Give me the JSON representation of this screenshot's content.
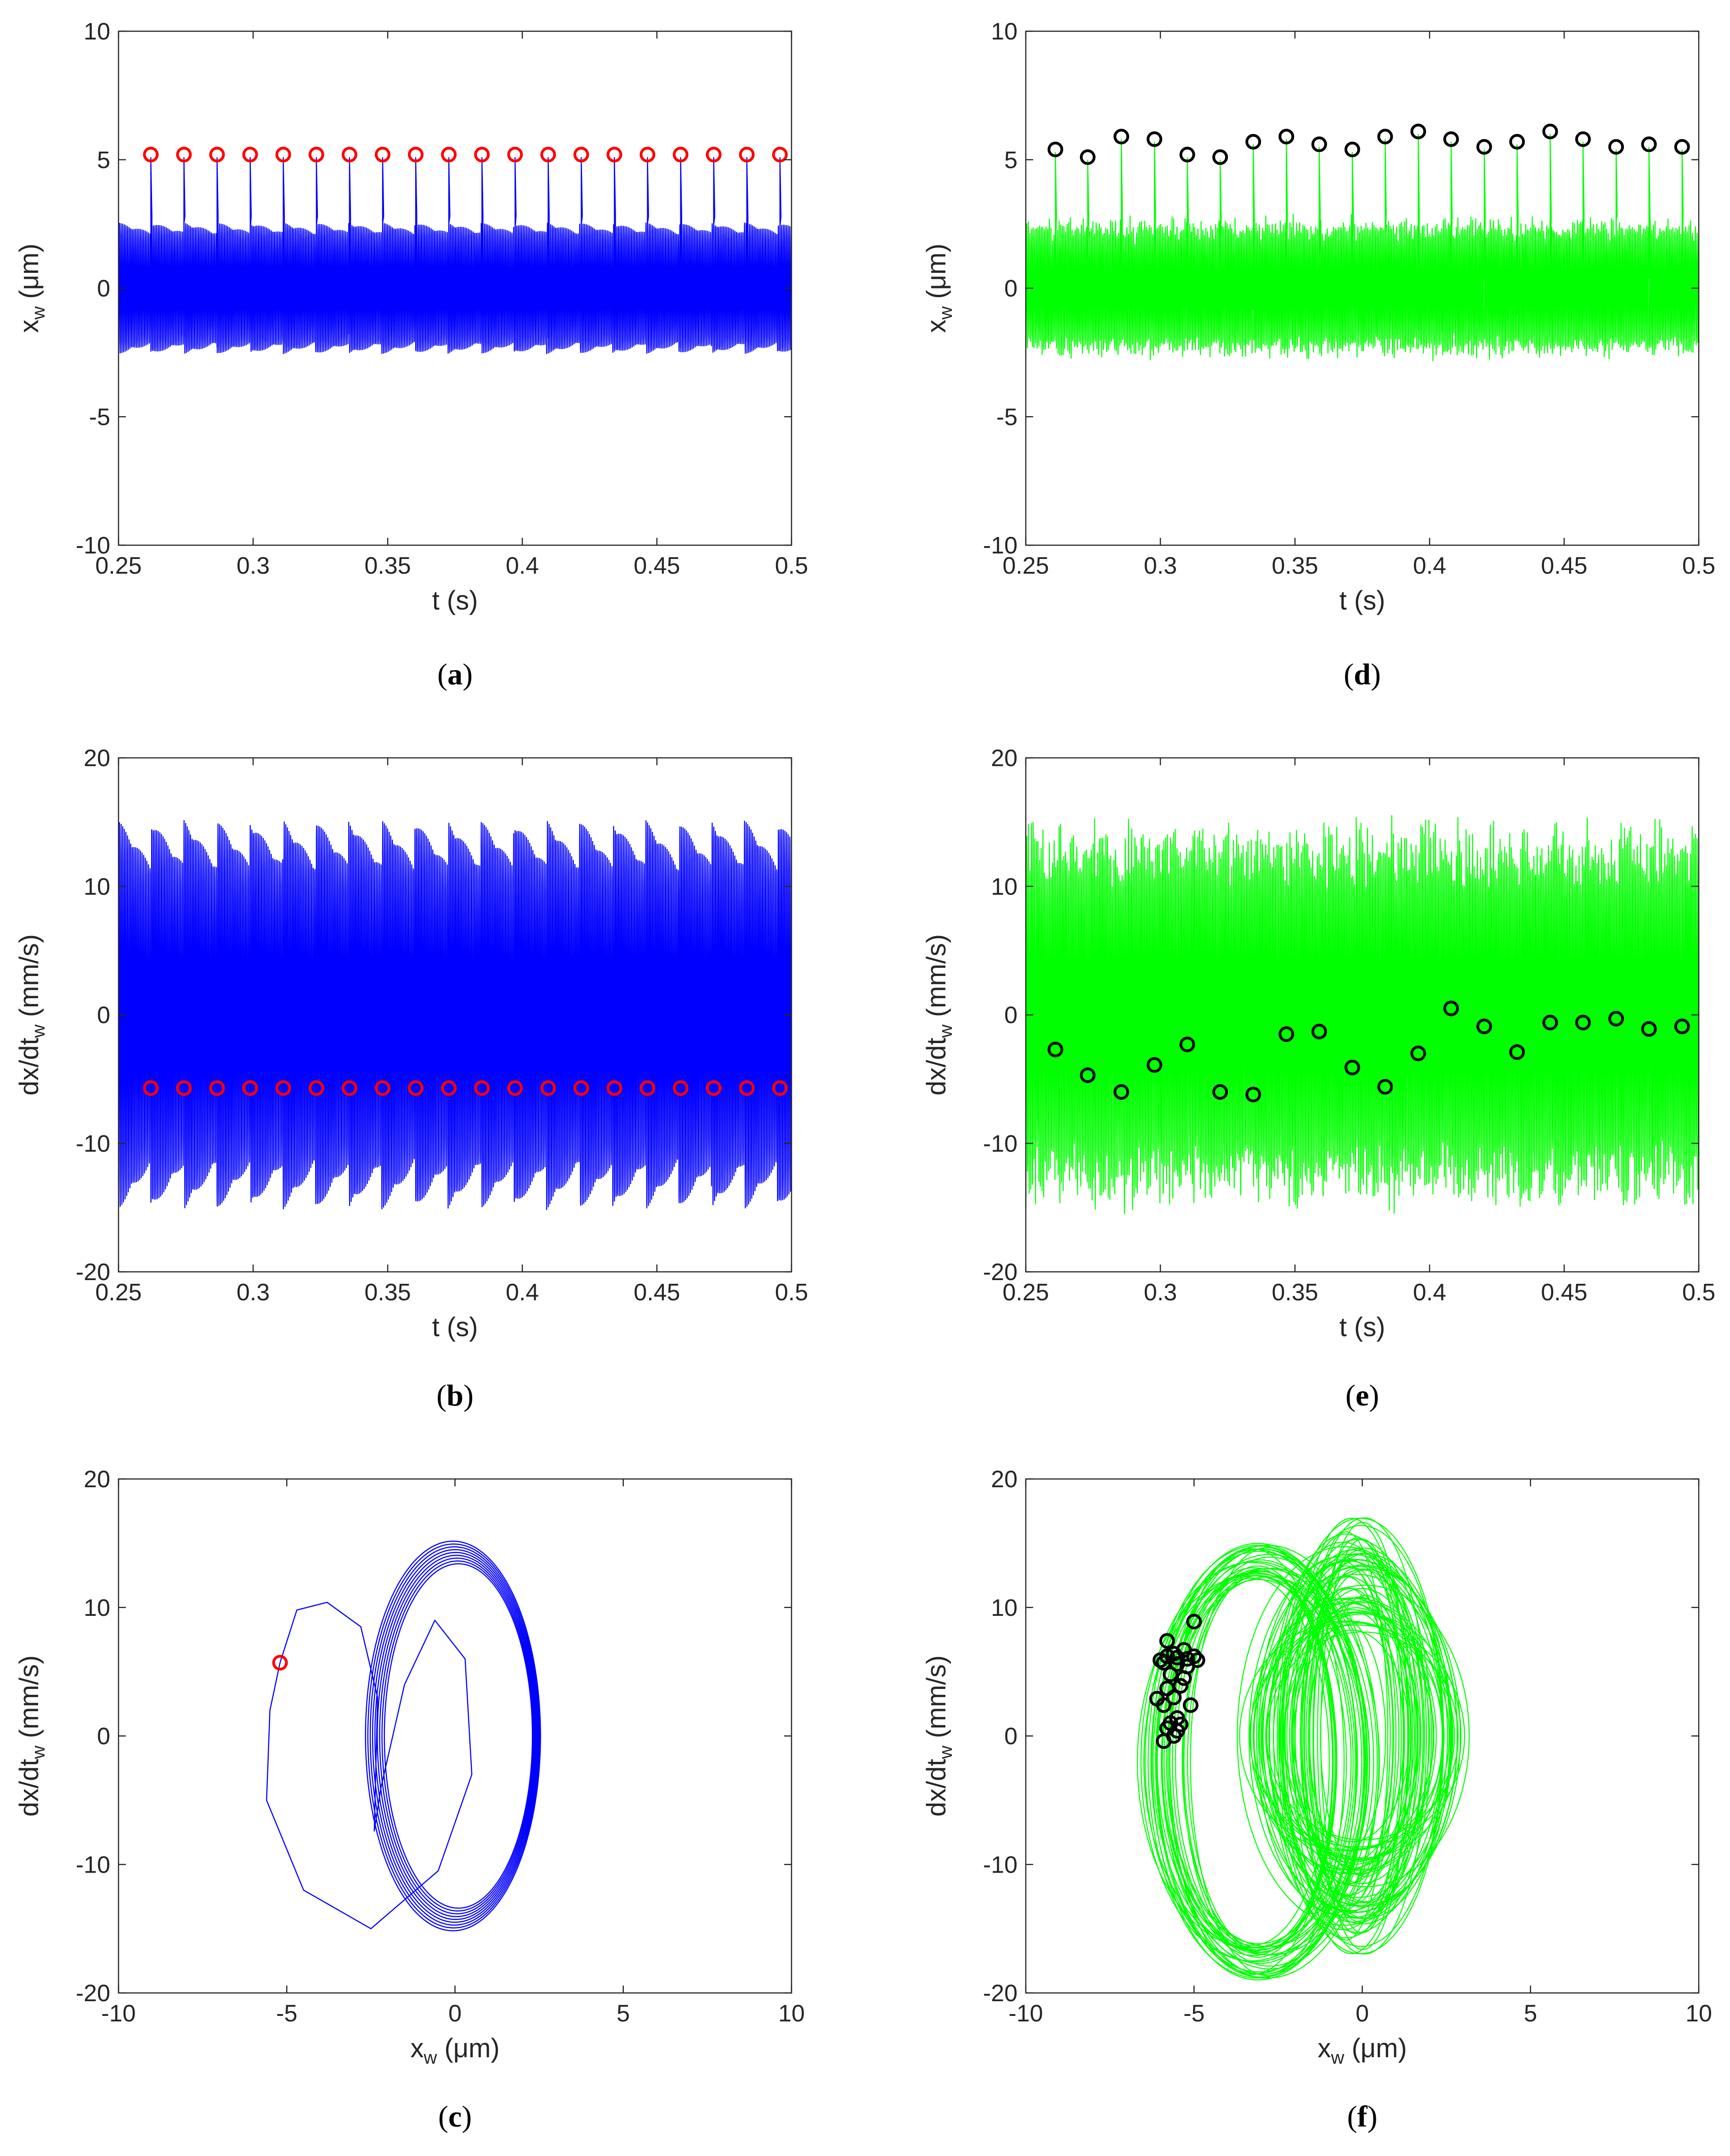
{
  "chart_data": [
    {
      "id": "a",
      "caption": "(a)",
      "caption_letter": "a",
      "type": "line",
      "signal": "spike_periodic",
      "line_color": "#0000ff",
      "marker_color": "#ff0000",
      "xlabel": "t (s)",
      "ylabel": "x_w (μm)",
      "xlim": [
        0.25,
        0.5
      ],
      "ylim": [
        -10,
        10
      ],
      "xticks": [
        0.25,
        0.3,
        0.35,
        0.4,
        0.45,
        0.5
      ],
      "yticks": [
        -10,
        -5,
        0,
        5,
        10
      ],
      "xtick_labels": [
        "0.25",
        "0.3",
        "0.35",
        "0.4",
        "0.45",
        "0.5"
      ],
      "ytick_labels": [
        "-10",
        "-5",
        "0",
        "5",
        "10"
      ],
      "markers_x": [
        0.262,
        0.2743,
        0.2866,
        0.2989,
        0.3112,
        0.3235,
        0.3358,
        0.3481,
        0.3604,
        0.3727,
        0.385,
        0.3973,
        0.4096,
        0.4219,
        0.4342,
        0.4465,
        0.4588,
        0.4711,
        0.4834,
        0.4957
      ],
      "markers_y": [
        5.2,
        5.2,
        5.2,
        5.2,
        5.2,
        5.2,
        5.2,
        5.2,
        5.2,
        5.2,
        5.2,
        5.2,
        5.2,
        5.2,
        5.2,
        5.2,
        5.2,
        5.2,
        5.2,
        5.2
      ],
      "signal_range": [
        -2.8,
        2.7
      ]
    },
    {
      "id": "b",
      "caption": "(b)",
      "caption_letter": "b",
      "type": "line",
      "signal": "dense_periodic",
      "line_color": "#0000ff",
      "marker_color": "#ff0000",
      "xlabel": "t (s)",
      "ylabel": "dx/dt_w (mm/s)",
      "xlim": [
        0.25,
        0.5
      ],
      "ylim": [
        -20,
        20
      ],
      "xticks": [
        0.25,
        0.3,
        0.35,
        0.4,
        0.45,
        0.5
      ],
      "yticks": [
        -20,
        -10,
        0,
        10,
        20
      ],
      "xtick_labels": [
        "0.25",
        "0.3",
        "0.35",
        "0.4",
        "0.45",
        "0.5"
      ],
      "ytick_labels": [
        "-20",
        "-10",
        "0",
        "10",
        "20"
      ],
      "markers_x": [
        0.262,
        0.2743,
        0.2866,
        0.2989,
        0.3112,
        0.3235,
        0.3358,
        0.3481,
        0.3604,
        0.3727,
        0.385,
        0.3973,
        0.4096,
        0.4219,
        0.4342,
        0.4465,
        0.4588,
        0.4711,
        0.4834,
        0.4957
      ],
      "markers_y": [
        -5.7,
        -5.7,
        -5.7,
        -5.7,
        -5.7,
        -5.7,
        -5.7,
        -5.7,
        -5.7,
        -5.7,
        -5.7,
        -5.7,
        -5.7,
        -5.7,
        -5.7,
        -5.7,
        -5.7,
        -5.7,
        -5.7,
        -5.7
      ],
      "signal_range": [
        -15.2,
        15.2
      ]
    },
    {
      "id": "c",
      "caption": "(c)",
      "caption_letter": "c",
      "type": "line",
      "signal": "phase_periodic",
      "line_color": "#0000ff",
      "marker_color": "#ff0000",
      "xlabel": "x_w (μm)",
      "ylabel": "dx/dt_w (mm/s)",
      "xlim": [
        -10,
        10
      ],
      "ylim": [
        -20,
        20
      ],
      "xticks": [
        -10,
        -5,
        0,
        5,
        10
      ],
      "yticks": [
        -20,
        -10,
        0,
        10,
        20
      ],
      "xtick_labels": [
        "-10",
        "-5",
        "0",
        "5",
        "10"
      ],
      "ytick_labels": [
        "-20",
        "-10",
        "0",
        "10",
        "20"
      ],
      "markers_x": [
        -5.2
      ],
      "markers_y": [
        5.7
      ]
    },
    {
      "id": "d",
      "caption": "(d)",
      "caption_letter": "d",
      "type": "line",
      "signal": "spike_chaotic",
      "line_color": "#00ff00",
      "marker_color": "#000000",
      "xlabel": "t (s)",
      "ylabel": "x_w (μm)",
      "xlim": [
        0.25,
        0.5
      ],
      "ylim": [
        -10,
        10
      ],
      "xticks": [
        0.25,
        0.3,
        0.35,
        0.4,
        0.45,
        0.5
      ],
      "yticks": [
        -10,
        -5,
        0,
        5,
        10
      ],
      "xtick_labels": [
        "0.25",
        "0.3",
        "0.35",
        "0.4",
        "0.45",
        "0.5"
      ],
      "ytick_labels": [
        "-10",
        "-5",
        "0",
        "5",
        "10"
      ],
      "markers_x": [
        0.261,
        0.273,
        0.2855,
        0.2978,
        0.31,
        0.3222,
        0.3345,
        0.3468,
        0.359,
        0.3713,
        0.3835,
        0.3958,
        0.408,
        0.4203,
        0.4325,
        0.4448,
        0.457,
        0.4693,
        0.4815,
        0.4938
      ],
      "markers_y": [
        5.4,
        5.1,
        5.9,
        5.8,
        5.2,
        5.1,
        5.7,
        5.9,
        5.6,
        5.4,
        5.9,
        6.1,
        5.8,
        5.5,
        5.7,
        6.1,
        5.8,
        5.5,
        5.6,
        5.5
      ],
      "signal_range": [
        -2.9,
        2.4
      ]
    },
    {
      "id": "e",
      "caption": "(e)",
      "caption_letter": "e",
      "type": "line",
      "signal": "dense_chaotic",
      "line_color": "#00ff00",
      "marker_color": "#000000",
      "xlabel": "t (s)",
      "ylabel": "dx/dt_w (mm/s)",
      "xlim": [
        0.25,
        0.5
      ],
      "ylim": [
        -20,
        20
      ],
      "xticks": [
        0.25,
        0.3,
        0.35,
        0.4,
        0.45,
        0.5
      ],
      "yticks": [
        -20,
        -10,
        0,
        10,
        20
      ],
      "xtick_labels": [
        "0.25",
        "0.3",
        "0.35",
        "0.4",
        "0.45",
        "0.5"
      ],
      "ytick_labels": [
        "-20",
        "-10",
        "0",
        "10",
        "20"
      ],
      "markers_x": [
        0.261,
        0.273,
        0.2855,
        0.2978,
        0.31,
        0.3222,
        0.3345,
        0.3468,
        0.359,
        0.3713,
        0.3835,
        0.3958,
        0.408,
        0.4203,
        0.4325,
        0.4448,
        0.457,
        0.4693,
        0.4815,
        0.4938
      ],
      "markers_y": [
        -2.7,
        -4.7,
        -6.0,
        -3.9,
        -2.3,
        -6.0,
        -6.2,
        -1.5,
        -1.3,
        -4.1,
        -5.6,
        -3.0,
        0.5,
        -0.9,
        -2.9,
        -0.6,
        -0.6,
        -0.3,
        -1.1,
        -0.9
      ],
      "signal_range": [
        -17.2,
        17.2
      ]
    },
    {
      "id": "f",
      "caption": "(f)",
      "caption_letter": "f",
      "type": "line",
      "signal": "phase_chaotic",
      "line_color": "#00ff00",
      "marker_color": "#000000",
      "xlabel": "x_w (μm)",
      "ylabel": "dx/dt_w (mm/s)",
      "xlim": [
        -10,
        10
      ],
      "ylim": [
        -20,
        20
      ],
      "xticks": [
        -10,
        -5,
        0,
        5,
        10
      ],
      "yticks": [
        -20,
        -10,
        0,
        10,
        20
      ],
      "xtick_labels": [
        "-10",
        "-5",
        "0",
        "5",
        "10"
      ],
      "ytick_labels": [
        "-20",
        "-10",
        "0",
        "10",
        "20"
      ],
      "markers_x": [
        -5.8,
        -5.5,
        -5.3,
        -5.0,
        -4.9,
        -5.6,
        -5.9,
        -5.2,
        -5.7,
        -6.0,
        -5.4,
        -5.8,
        -5.1,
        -5.6,
        -5.9,
        -5.5,
        -6.1,
        -5.3,
        -5.7,
        -5.0,
        -5.5,
        -5.8,
        -5.4,
        -5.9,
        -5.6,
        -5.2,
        -5.5,
        -5.8
      ],
      "markers_y": [
        7.4,
        6.1,
        6.7,
        8.9,
        5.9,
        6.4,
        5.7,
        5.4,
        4.8,
        5.9,
        3.9,
        3.7,
        2.4,
        3.0,
        2.4,
        1.4,
        2.9,
        4.5,
        1.0,
        6.2,
        0.4,
        0.6,
        0.9,
        -0.4,
        0.0,
        6.0,
        5.6,
        6.2
      ]
    }
  ]
}
